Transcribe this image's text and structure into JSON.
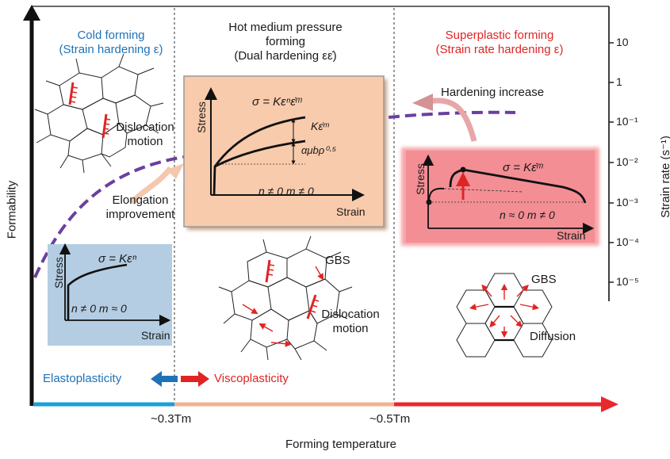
{
  "regions": {
    "cold": {
      "line1": "Cold forming",
      "line2": "(Strain hardening ε)"
    },
    "hot": {
      "line1": "Hot medium pressure",
      "line2": "forming",
      "line3": "(Dual hardening εε̇)"
    },
    "superplastic": {
      "line1": "Superplastic forming",
      "line2": "(Strain rate hardening ε)"
    }
  },
  "annotations": {
    "hardening_increase": "Hardening increase",
    "dislocation_motion_1": [
      "Dislocation",
      "motion"
    ],
    "elongation_improvement": [
      "Elongation",
      "improvement"
    ],
    "gbs_1": "GBS",
    "dislocation_motion_2": [
      "Dislocation",
      "motion"
    ],
    "gbs_2": "GBS",
    "diffusion": "Diffusion",
    "elastoplasticity": "Elastoplasticity",
    "viscoplasticity": "Viscoplasticity"
  },
  "insets": {
    "hot": {
      "equation": "σ = Kεⁿε̇ᵐ",
      "term_rate": "Kε̇ᵐ",
      "term_disl": "αμbρ⁰·⁵",
      "conditions": "n ≠ 0   m ≠ 0",
      "ylabel": "Stress",
      "xlabel": "Strain"
    },
    "superplastic": {
      "equation": "σ = Kε̇ᵐ",
      "conditions": "n ≈ 0   m ≠ 0",
      "ylabel": "Stress",
      "xlabel": "Strain"
    },
    "cold": {
      "equation": "σ = Kεⁿ",
      "conditions": "n ≠ 0   m ≈ 0",
      "ylabel": "Stress",
      "xlabel": "Strain"
    }
  },
  "axes": {
    "y_left_label": "Formability",
    "y_right_label": "Strain rate (s⁻¹)",
    "x_label": "Forming temperature",
    "x_ticks": [
      "~0.3Tm",
      "~0.5Tm"
    ],
    "right_ticks": [
      "10",
      "1",
      "10⁻¹",
      "10⁻²",
      "10⁻³",
      "10⁻⁴",
      "10⁻⁵"
    ]
  },
  "colors": {
    "cold": "#1a9fdc",
    "hot": "#f0b48e",
    "superplastic": "#e8282c",
    "hot_panel": "#f8cbac",
    "sp_panel": "#f28e94",
    "cold_panel": "#b4cde2",
    "formability_curve": "#6b3fa0"
  }
}
